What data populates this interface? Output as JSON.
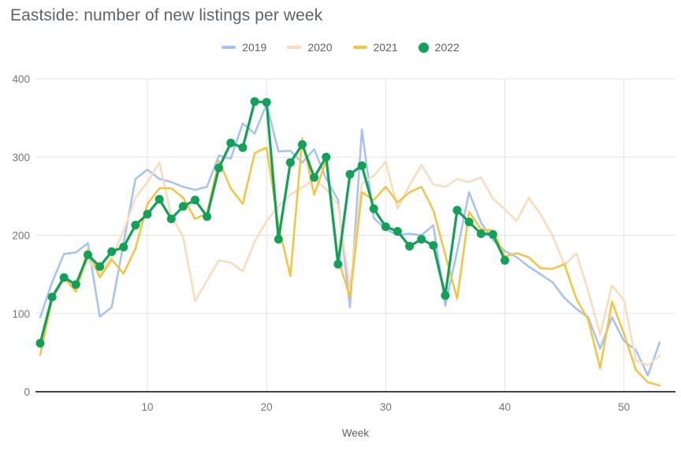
{
  "title": "Eastside: number of new listings per week",
  "legend": {
    "items": [
      {
        "label": "2019",
        "color": "#a4c2f4",
        "marker": "line"
      },
      {
        "label": "2020",
        "color": "#f8dcbc",
        "marker": "line"
      },
      {
        "label": "2021",
        "color": "#f4c440",
        "marker": "line"
      },
      {
        "label": "2022",
        "color": "#12a158",
        "marker": "circle"
      }
    ]
  },
  "colors": {
    "gridline": "#e3e3e3",
    "axis_line": "#424242",
    "tick_text": "#757575",
    "title_text": "#5f6368"
  },
  "chart_data": {
    "type": "line",
    "title": "Eastside: number of new listings per week",
    "xlabel": "Week",
    "ylabel": "",
    "xlim": [
      1,
      53
    ],
    "ylim": [
      0,
      400
    ],
    "x_ticks": [
      10,
      20,
      30,
      40,
      50
    ],
    "y_ticks": [
      0,
      100,
      200,
      300,
      400
    ],
    "grid": true,
    "legend_position": "top-center",
    "x": [
      1,
      2,
      3,
      4,
      5,
      6,
      7,
      8,
      9,
      10,
      11,
      12,
      13,
      14,
      15,
      16,
      17,
      18,
      19,
      20,
      21,
      22,
      23,
      24,
      25,
      26,
      27,
      28,
      29,
      30,
      31,
      32,
      33,
      34,
      35,
      36,
      37,
      38,
      39,
      40,
      41,
      42,
      43,
      44,
      45,
      46,
      47,
      48,
      49,
      50,
      51,
      52,
      53
    ],
    "series": [
      {
        "name": "2019",
        "color": "#a4c2f4",
        "marker": "none",
        "values": [
          95,
          140,
          176,
          178,
          190,
          96,
          108,
          190,
          272,
          284,
          272,
          268,
          262,
          258,
          262,
          302,
          298,
          343,
          330,
          368,
          307,
          308,
          293,
          310,
          272,
          245,
          108,
          335,
          222,
          208,
          200,
          202,
          200,
          213,
          110,
          180,
          255,
          216,
          194,
          180,
          172,
          160,
          150,
          140,
          120,
          106,
          95,
          55,
          95,
          65,
          53,
          21,
          63
        ]
      },
      {
        "name": "2020",
        "color": "#f8dcbc",
        "marker": "none",
        "values": [
          55,
          120,
          150,
          130,
          168,
          150,
          172,
          205,
          248,
          268,
          293,
          225,
          198,
          116,
          142,
          168,
          165,
          154,
          192,
          218,
          237,
          252,
          261,
          272,
          259,
          239,
          133,
          266,
          276,
          294,
          234,
          264,
          290,
          265,
          262,
          272,
          268,
          274,
          247,
          233,
          218,
          248,
          227,
          200,
          162,
          177,
          129,
          73,
          136,
          117,
          40,
          34,
          46
        ]
      },
      {
        "name": "2021",
        "color": "#f4c440",
        "marker": "none",
        "values": [
          47,
          118,
          146,
          128,
          182,
          146,
          169,
          151,
          183,
          240,
          260,
          260,
          248,
          221,
          228,
          295,
          260,
          240,
          305,
          312,
          213,
          148,
          324,
          252,
          295,
          170,
          121,
          255,
          245,
          262,
          242,
          255,
          262,
          232,
          175,
          119,
          230,
          208,
          206,
          173,
          177,
          172,
          158,
          157,
          163,
          119,
          92,
          30,
          115,
          74,
          28,
          12,
          8
        ]
      },
      {
        "name": "2022",
        "color": "#12a158",
        "marker": "circle",
        "values": [
          62,
          121,
          146,
          137,
          175,
          160,
          179,
          185,
          213,
          227,
          246,
          221,
          237,
          245,
          224,
          286,
          318,
          312,
          371,
          370,
          195,
          293,
          316,
          274,
          300,
          163,
          278,
          289,
          234,
          211,
          205,
          186,
          195,
          187,
          123,
          232,
          217,
          202,
          201,
          168,
          null,
          null,
          null,
          null,
          null,
          null,
          null,
          null,
          null,
          null,
          null,
          null,
          null
        ]
      }
    ]
  }
}
